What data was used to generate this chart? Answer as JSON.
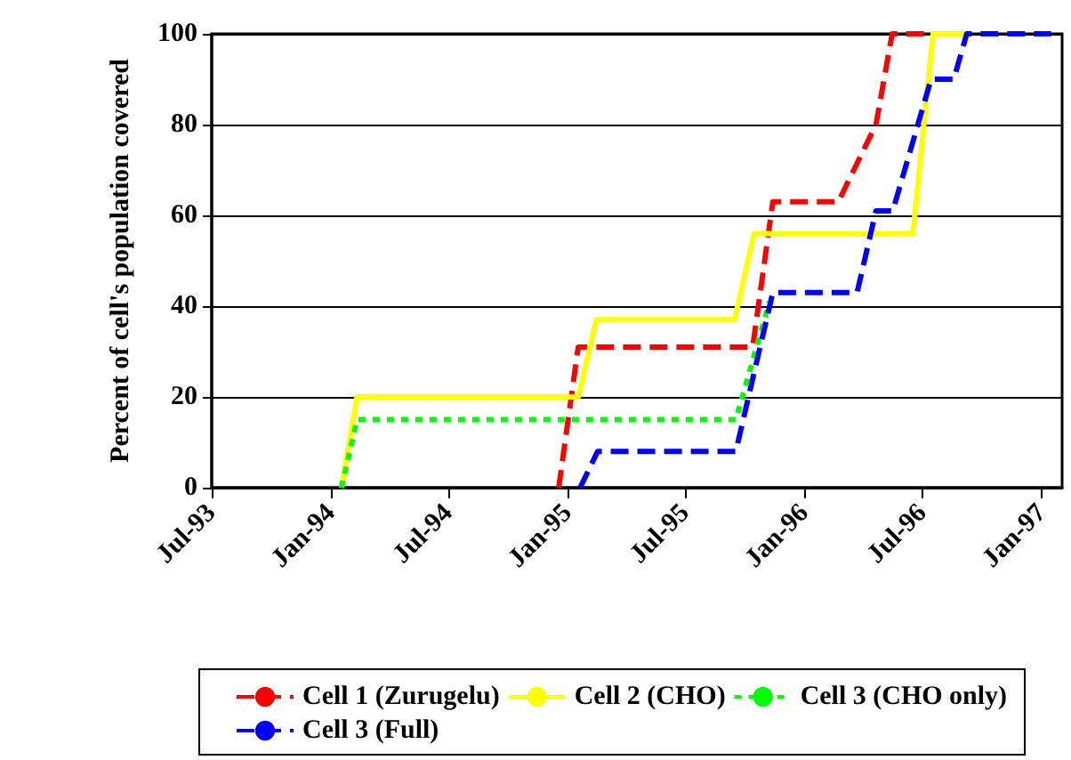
{
  "chart_data": {
    "type": "line",
    "ylabel": "Percent of cell's population covered",
    "xlim": [
      "1993-07-01",
      "1997-02-01"
    ],
    "xticks": [
      {
        "value": "1993-07-01",
        "label": "Jul-93"
      },
      {
        "value": "1994-01-01",
        "label": "Jan-94"
      },
      {
        "value": "1994-07-01",
        "label": "Jul-94"
      },
      {
        "value": "1995-01-01",
        "label": "Jan-95"
      },
      {
        "value": "1995-07-01",
        "label": "Jul-95"
      },
      {
        "value": "1996-01-01",
        "label": "Jan-96"
      },
      {
        "value": "1996-07-01",
        "label": "Jul-96"
      },
      {
        "value": "1997-01-01",
        "label": "Jan-97"
      }
    ],
    "ylim": [
      0,
      100
    ],
    "yticks": [
      0,
      20,
      40,
      60,
      80,
      100
    ],
    "grid": "y",
    "legend": "bottom",
    "marker": "none",
    "series": [
      {
        "name": "Cell 1 (Zurugelu)",
        "color": "#ff0000",
        "line_style": "dashed",
        "x": [
          "1994-12-18",
          "1995-01-17",
          "1995-10-13",
          "1995-11-13",
          "1996-02-22",
          "1996-04-20",
          "1996-05-15",
          "1996-07-10"
        ],
        "values": [
          0,
          31,
          31,
          63,
          63,
          80,
          100,
          100
        ]
      },
      {
        "name": "Cell 2 (CHO)",
        "color": "#ffff00",
        "line_style": "solid",
        "x": [
          "1994-01-17",
          "1994-02-10",
          "1995-01-17",
          "1995-02-14",
          "1995-09-15",
          "1995-10-15",
          "1996-06-16",
          "1996-07-17",
          "1996-09-13"
        ],
        "values": [
          0,
          20,
          20,
          37,
          37,
          56,
          56,
          100,
          100
        ]
      },
      {
        "name": "Cell 3 (CHO only)",
        "color": "#00ff00",
        "line_style": "dotted",
        "x": [
          "1994-01-17",
          "1994-02-10",
          "1995-09-17",
          "1995-11-08"
        ],
        "values": [
          0,
          15,
          15,
          41
        ]
      },
      {
        "name": "Cell 3 (Full)",
        "color": "#0000ff",
        "line_style": "dashed",
        "x": [
          "1995-01-20",
          "1995-02-16",
          "1995-09-17",
          "1995-11-13",
          "1996-03-22",
          "1996-04-20",
          "1996-05-16",
          "1996-07-14",
          "1996-08-18",
          "1996-09-07",
          "1997-01-15"
        ],
        "values": [
          0,
          8,
          8,
          43,
          43,
          61,
          61,
          90,
          90,
          100,
          100
        ]
      }
    ]
  }
}
